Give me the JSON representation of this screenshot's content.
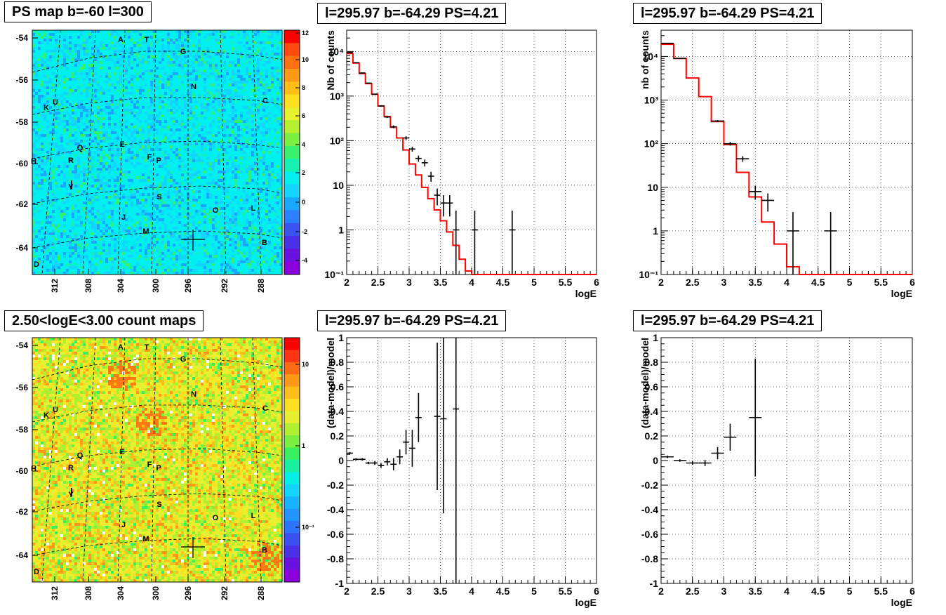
{
  "maps": [
    {
      "title": "PS map b=-60 l=300",
      "kind": "ps",
      "colorbar_labels": [
        "12",
        "10",
        "8",
        "6",
        "4",
        "2",
        "0",
        "-2",
        "-4"
      ],
      "y_ticks": [
        "-54",
        "-56",
        "-58",
        "-60",
        "-62",
        "-64"
      ],
      "x_ticks": [
        "312",
        "308",
        "304",
        "300",
        "296",
        "292",
        "288"
      ],
      "source_labels": [
        "A",
        "T",
        "G",
        "N",
        "C",
        "K",
        "U",
        "Q",
        "E",
        "F",
        "P",
        "R",
        "H",
        "Y",
        "S",
        "O",
        "L",
        "J",
        "M",
        "B",
        "D"
      ]
    },
    {
      "title": "2.50<logE<3.00 count maps",
      "kind": "count",
      "colorbar_labels": [
        "10",
        "1",
        "10⁻¹"
      ],
      "y_ticks": [
        "-54",
        "-56",
        "-58",
        "-60",
        "-62",
        "-64"
      ],
      "x_ticks": [
        "312",
        "308",
        "304",
        "300",
        "296",
        "292",
        "288"
      ],
      "source_labels": [
        "A",
        "T",
        "G",
        "N",
        "C",
        "K",
        "U",
        "Q",
        "E",
        "F",
        "P",
        "R",
        "H",
        "Y",
        "S",
        "O",
        "L",
        "J",
        "M",
        "B",
        "D"
      ]
    }
  ],
  "chart_data": [
    {
      "type": "step",
      "title": "l=295.97 b=-64.29 PS=4.21",
      "xlabel": "logE",
      "ylabel": "Nb of counts",
      "xlim": [
        2,
        6
      ],
      "ylim": [
        0.1,
        30000
      ],
      "log_y": true,
      "grid": true,
      "x_ticks": [
        "2",
        "2.5",
        "3",
        "3.5",
        "4",
        "4.5",
        "5",
        "5.5",
        "6"
      ],
      "y_ticks": [
        "10⁻¹",
        "1",
        "10",
        "10²",
        "10³",
        "10⁴"
      ],
      "model_color": "#ff0000",
      "model_bin_width": 0.1,
      "model_x": [
        2.0,
        2.1,
        2.2,
        2.3,
        2.4,
        2.5,
        2.6,
        2.7,
        2.8,
        2.9,
        3.0,
        3.1,
        3.2,
        3.3,
        3.4,
        3.5,
        3.6,
        3.7,
        3.8,
        3.9,
        4.0,
        4.1,
        4.2,
        4.3,
        4.4,
        4.5,
        4.6,
        4.7,
        4.8,
        4.9,
        5.0,
        5.1,
        5.2,
        5.3,
        5.4,
        5.5,
        5.6,
        5.7,
        5.8,
        5.9
      ],
      "model_y": [
        9000,
        5500,
        3200,
        1900,
        1100,
        600,
        350,
        200,
        115,
        62,
        30,
        17,
        9,
        5,
        2.8,
        1.6,
        0.9,
        0.45,
        0.22,
        0.12,
        0.1,
        0.1,
        0.1,
        0.1,
        0.1,
        0.1,
        0.1,
        0.1,
        0.1,
        0.1,
        0.1,
        0.1,
        0.1,
        0.1,
        0.1,
        0.1,
        0.1,
        0.1,
        0.1,
        0.1
      ],
      "data_points": [
        {
          "x": 2.05,
          "y": 9500,
          "dx": 0.05
        },
        {
          "x": 2.15,
          "y": 5600,
          "dx": 0.05
        },
        {
          "x": 2.25,
          "y": 3300,
          "dx": 0.05
        },
        {
          "x": 2.35,
          "y": 1950,
          "dx": 0.05
        },
        {
          "x": 2.45,
          "y": 1100,
          "dx": 0.05
        },
        {
          "x": 2.55,
          "y": 600,
          "dx": 0.05
        },
        {
          "x": 2.65,
          "y": 340,
          "dx": 0.05
        },
        {
          "x": 2.75,
          "y": 205,
          "dx": 0.05
        },
        {
          "x": 2.95,
          "y": 115,
          "dx": 0.05
        },
        {
          "x": 3.05,
          "y": 65,
          "dx": 0.05
        },
        {
          "x": 3.15,
          "y": 40,
          "dx": 0.05
        },
        {
          "x": 3.25,
          "y": 32,
          "dx": 0.05
        },
        {
          "x": 3.35,
          "y": 16,
          "dx": 0.05
        },
        {
          "x": 3.45,
          "y": 6,
          "dx": 0.05
        },
        {
          "x": 3.55,
          "y": 4,
          "dx": 0.05
        },
        {
          "x": 3.65,
          "y": 4,
          "dx": 0.05
        },
        {
          "x": 3.75,
          "y": 1,
          "dx": 0.05
        },
        {
          "x": 4.05,
          "y": 1,
          "dx": 0.05
        },
        {
          "x": 4.65,
          "y": 1,
          "dx": 0.05
        }
      ]
    },
    {
      "type": "step",
      "title": "l=295.97 b=-64.29 PS=4.21",
      "xlabel": "logE",
      "ylabel": "nb of counts",
      "xlim": [
        2,
        6
      ],
      "ylim": [
        0.1,
        40000
      ],
      "log_y": true,
      "grid": true,
      "x_ticks": [
        "2",
        "2.5",
        "3",
        "3.5",
        "4",
        "4.5",
        "5",
        "5.5",
        "6"
      ],
      "y_ticks": [
        "10⁻¹",
        "1",
        "10",
        "10²",
        "10³",
        "10⁴"
      ],
      "model_color": "#ff0000",
      "model_bin_width": 0.2,
      "model_x": [
        2.0,
        2.2,
        2.4,
        2.6,
        2.8,
        3.0,
        3.2,
        3.4,
        3.6,
        3.8,
        4.0,
        4.2,
        4.4,
        4.6,
        4.8,
        5.0,
        5.2,
        5.4,
        5.6,
        5.8
      ],
      "model_y": [
        19000,
        9000,
        3200,
        1200,
        320,
        95,
        22,
        6,
        1.6,
        0.5,
        0.15,
        0.1,
        0.1,
        0.1,
        0.1,
        0.1,
        0.1,
        0.1,
        0.1,
        0.1
      ],
      "data_points": [
        {
          "x": 2.1,
          "y": 20000,
          "dx": 0.1
        },
        {
          "x": 2.3,
          "y": 9000,
          "dx": 0.1
        },
        {
          "x": 2.9,
          "y": 330,
          "dx": 0.1
        },
        {
          "x": 3.1,
          "y": 100,
          "dx": 0.1
        },
        {
          "x": 3.3,
          "y": 45,
          "dx": 0.1
        },
        {
          "x": 3.5,
          "y": 8,
          "dx": 0.1
        },
        {
          "x": 3.7,
          "y": 5,
          "dx": 0.1
        },
        {
          "x": 4.1,
          "y": 1,
          "dx": 0.1
        },
        {
          "x": 4.7,
          "y": 1,
          "dx": 0.1
        }
      ]
    },
    {
      "type": "scatter",
      "title": "l=295.97 b=-64.29 PS=4.21",
      "xlabel": "logE",
      "ylabel": "(data-model)/model",
      "xlim": [
        2,
        6
      ],
      "ylim": [
        -1,
        1
      ],
      "grid": true,
      "x_ticks": [
        "2",
        "2.5",
        "3",
        "3.5",
        "4",
        "4.5",
        "5",
        "5.5",
        "6"
      ],
      "y_ticks": [
        "-1",
        "-0.8",
        "-0.6",
        "-0.4",
        "-0.2",
        "0",
        "0.2",
        "0.4",
        "0.6",
        "0.8",
        "1"
      ],
      "points": [
        {
          "x": 2.05,
          "y": 0.06,
          "dx": 0.05,
          "err": 0.01
        },
        {
          "x": 2.15,
          "y": 0.01,
          "dx": 0.05,
          "err": 0.01
        },
        {
          "x": 2.25,
          "y": 0.01,
          "dx": 0.05,
          "err": 0.01
        },
        {
          "x": 2.35,
          "y": -0.02,
          "dx": 0.05,
          "err": 0.01
        },
        {
          "x": 2.45,
          "y": -0.02,
          "dx": 0.05,
          "err": 0.015
        },
        {
          "x": 2.55,
          "y": -0.04,
          "dx": 0.05,
          "err": 0.02
        },
        {
          "x": 2.65,
          "y": -0.01,
          "dx": 0.05,
          "err": 0.03
        },
        {
          "x": 2.75,
          "y": -0.03,
          "dx": 0.05,
          "err": 0.05
        },
        {
          "x": 2.85,
          "y": 0.03,
          "dx": 0.05,
          "err": 0.06
        },
        {
          "x": 2.95,
          "y": 0.15,
          "dx": 0.05,
          "err": 0.1
        },
        {
          "x": 3.05,
          "y": 0.1,
          "dx": 0.05,
          "err": 0.15
        },
        {
          "x": 3.15,
          "y": 0.35,
          "dx": 0.05,
          "err": 0.2
        },
        {
          "x": 3.45,
          "y": 0.36,
          "dx": 0.05,
          "err": 0.6
        },
        {
          "x": 3.55,
          "y": 0.34,
          "dx": 0.05,
          "err": 0.77
        },
        {
          "x": 3.75,
          "y": 0.42,
          "dx": 0.05,
          "err": 1.45
        }
      ]
    },
    {
      "type": "scatter",
      "title": "l=295.97 b=-64.29 PS=4.21",
      "xlabel": "logE",
      "ylabel": "(data-model)/model",
      "xlim": [
        2,
        6
      ],
      "ylim": [
        -1,
        1
      ],
      "grid": true,
      "x_ticks": [
        "2",
        "2.5",
        "3",
        "3.5",
        "4",
        "4.5",
        "5",
        "5.5",
        "6"
      ],
      "y_ticks": [
        "-1",
        "-0.8",
        "-0.6",
        "-0.4",
        "-0.2",
        "0",
        "0.2",
        "0.4",
        "0.6",
        "0.8",
        "1"
      ],
      "points": [
        {
          "x": 2.1,
          "y": 0.03,
          "dx": 0.1,
          "err": 0.01
        },
        {
          "x": 2.3,
          "y": 0.0,
          "dx": 0.1,
          "err": 0.01
        },
        {
          "x": 2.5,
          "y": -0.02,
          "dx": 0.1,
          "err": 0.015
        },
        {
          "x": 2.7,
          "y": -0.02,
          "dx": 0.1,
          "err": 0.025
        },
        {
          "x": 2.9,
          "y": 0.06,
          "dx": 0.1,
          "err": 0.05
        },
        {
          "x": 3.1,
          "y": 0.19,
          "dx": 0.1,
          "err": 0.11
        },
        {
          "x": 3.5,
          "y": 0.35,
          "dx": 0.1,
          "err": 0.48
        }
      ]
    }
  ]
}
